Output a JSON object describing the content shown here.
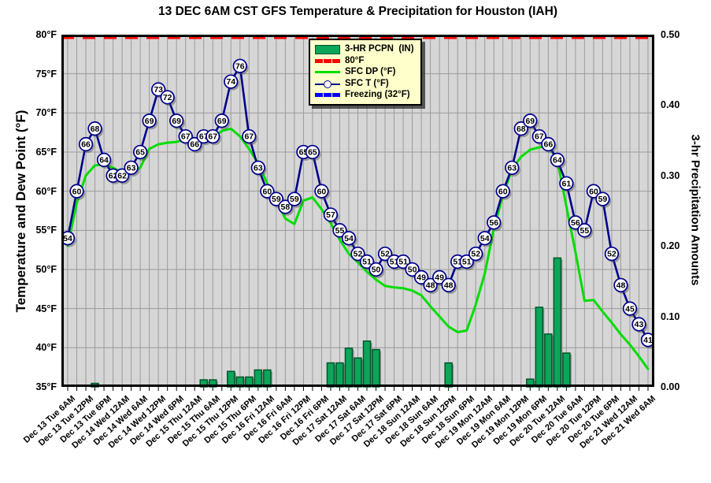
{
  "title": "13 DEC 6AM CST GFS Temperature & Precipitation for Houston (IAH)",
  "axes": {
    "left_title": "Temperature and Dew Point (°F)",
    "right_title": "3-hr Precipitation Amounts",
    "left_ticks": [
      "80°F",
      "75°F",
      "70°F",
      "65°F",
      "60°F",
      "55°F",
      "50°F",
      "45°F",
      "40°F",
      "35°F"
    ],
    "right_ticks": [
      "0.50",
      "0.40",
      "0.30",
      "0.20",
      "0.10",
      "0.00"
    ]
  },
  "legend": {
    "items": [
      {
        "swatch": "bar-green",
        "label": "3-HR PCPN  (IN)"
      },
      {
        "swatch": "dash-red",
        "label": "80°F"
      },
      {
        "swatch": "line-green",
        "label": "SFC DP (°F)"
      },
      {
        "swatch": "line-navy",
        "label": "SFC T (°F)"
      },
      {
        "swatch": "dash-blue",
        "label": "Freezing (32°F)"
      }
    ]
  },
  "colors": {
    "plot_bg": "#d6d6d6",
    "grid": "#9b9b9b",
    "border": "#000000",
    "temp_line": "#00008b",
    "dew_line": "#00dd00",
    "bar_fill": "#0ca559",
    "bar_stroke": "#00552b",
    "red_dash": "#ff0000",
    "freezing_dash": "#0000ff",
    "marker_fill": "#ffffff",
    "legend_bg": "#ffffcc"
  },
  "chart_data": {
    "type": "line",
    "subtype": "meteogram (two temperature lines + precipitation bars)",
    "title": "13 DEC 6AM CST GFS Temperature & Precipitation for Houston (IAH)",
    "xlabel": "",
    "ylabel_left": "Temperature and Dew Point (°F)",
    "ylabel_right": "3-hr Precipitation Amounts",
    "ylim_left": [
      35,
      80
    ],
    "ylim_right": [
      0.0,
      0.5
    ],
    "grid": true,
    "legend_position": "top-center",
    "time_step_hours": 3,
    "n_points": 65,
    "x_tick_labels_every_6h": [
      "Dec 13 Tue 6AM",
      "Dec 13 Tue 12PM",
      "Dec 13 Tue 6PM",
      "Dec 14 Wed 12AM",
      "Dec 14 Wed 6AM",
      "Dec 14 Wed 12PM",
      "Dec 14 Wed 6PM",
      "Dec 15 Thu 12AM",
      "Dec 15 Thu 6AM",
      "Dec 15 Thu 12PM",
      "Dec 15 Thu 6PM",
      "Dec 16 Fri 12AM",
      "Dec 16 Fri 6AM",
      "Dec 16 Fri 12PM",
      "Dec 16 Fri 6PM",
      "Dec 17 Sat 12AM",
      "Dec 17 Sat 6AM",
      "Dec 17 Sat 12PM",
      "Dec 17 Sat 6PM",
      "Dec 18 Sun 12AM",
      "Dec 18 Sun 6AM",
      "Dec 18 Sun 12PM",
      "Dec 18 Sun 6PM",
      "Dec 19 Mon 12AM",
      "Dec 19 Mon 6AM",
      "Dec 19 Mon 12PM",
      "Dec 19 Mon 6PM",
      "Dec 20 Tue 12AM",
      "Dec 20 Tue 6AM",
      "Dec 20 Tue 12PM",
      "Dec 20 Tue 6PM",
      "Dec 21 Wed 12AM",
      "Dec 21 Wed 6AM"
    ],
    "series": [
      {
        "name": "SFC T (°F)",
        "type": "line-with-labeled-markers",
        "axis": "left",
        "values": [
          54,
          60,
          66,
          68,
          64,
          62,
          62,
          63,
          65,
          69,
          73,
          72,
          69,
          67,
          66,
          67,
          67,
          69,
          74,
          76,
          67,
          63,
          60,
          59,
          58,
          59,
          65,
          65,
          60,
          57,
          55,
          54,
          52,
          51,
          50,
          52,
          51,
          51,
          50,
          49,
          48,
          49,
          48,
          51,
          51,
          52,
          54,
          56,
          60,
          63,
          68,
          69,
          67,
          66,
          64,
          61,
          56,
          55,
          60,
          59,
          52,
          48,
          45,
          43,
          41
        ]
      },
      {
        "name": "SFC DP (°F)",
        "type": "line",
        "axis": "left",
        "values": [
          53,
          58.5,
          62,
          63.3,
          63.4,
          63,
          62.4,
          62.3,
          63,
          65.4,
          66,
          66.2,
          66.3,
          66.6,
          66.7,
          66.6,
          66.8,
          67.7,
          68,
          67,
          65.4,
          63.6,
          61,
          58.8,
          56.5,
          55.8,
          58.8,
          59.2,
          57.7,
          55.9,
          53.8,
          52,
          50.9,
          49.7,
          48.7,
          47.9,
          47.7,
          47.6,
          47.3,
          46.7,
          45.3,
          44,
          42.7,
          42,
          42.2,
          45.5,
          49.5,
          55.2,
          59.5,
          62.8,
          64.4,
          65.3,
          65.6,
          65.8,
          64,
          58,
          52.2,
          46,
          46.1,
          44.6,
          43.2,
          41.7,
          40.4,
          38.9,
          37.3
        ]
      },
      {
        "name": "3-HR PCPN (IN)",
        "type": "bar",
        "axis": "right",
        "values": [
          0,
          0,
          0,
          0.005,
          0,
          0,
          0,
          0,
          0,
          0,
          0,
          0,
          0,
          0,
          0,
          0.01,
          0.01,
          0,
          0.022,
          0.014,
          0.014,
          0.024,
          0.024,
          0,
          0,
          0,
          0,
          0,
          0,
          0.034,
          0.034,
          0.055,
          0.041,
          0.065,
          0.053,
          0,
          0,
          0,
          0,
          0,
          0,
          0,
          0.034,
          0,
          0,
          0,
          0,
          0,
          0,
          0,
          0,
          0.011,
          0.113,
          0.075,
          0.183,
          0.048,
          0,
          0,
          0,
          0,
          0,
          0,
          0,
          0,
          0
        ]
      },
      {
        "name": "80°F",
        "type": "reference-line-dashed",
        "axis": "left",
        "value": 80
      },
      {
        "name": "Freezing (32°F)",
        "type": "reference-line-dashed",
        "axis": "left",
        "value": 32,
        "note": "below visible axis range; shown only in legend"
      }
    ]
  }
}
